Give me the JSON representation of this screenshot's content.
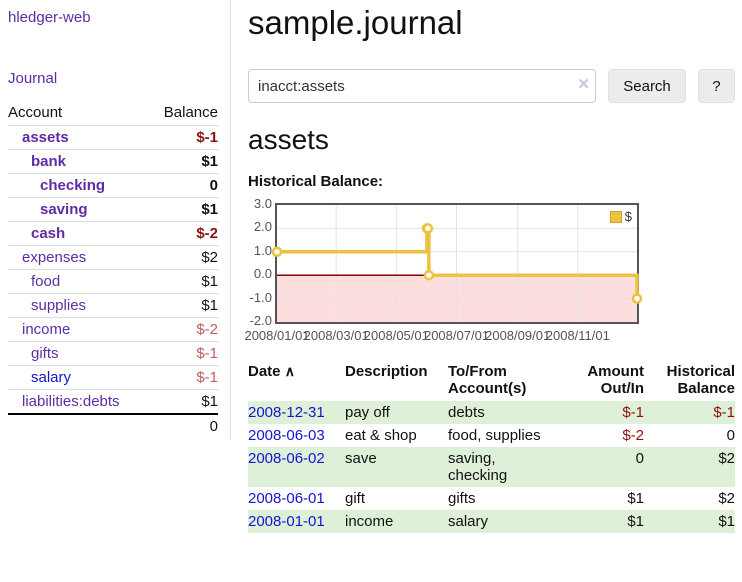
{
  "brand": "hledger-web",
  "nav": {
    "journal": "Journal"
  },
  "page": {
    "title": "sample.journal"
  },
  "sidebar": {
    "header": {
      "account": "Account",
      "balance": "Balance"
    },
    "rows": [
      {
        "name": "assets",
        "balance": "$-1"
      },
      {
        "name": "bank",
        "balance": "$1"
      },
      {
        "name": "checking",
        "balance": "0"
      },
      {
        "name": "saving",
        "balance": "$1"
      },
      {
        "name": "cash",
        "balance": "$-2"
      },
      {
        "name": "expenses",
        "balance": "$2"
      },
      {
        "name": "food",
        "balance": "$1"
      },
      {
        "name": "supplies",
        "balance": "$1"
      },
      {
        "name": "income",
        "balance": "$-2"
      },
      {
        "name": "gifts",
        "balance": "$-1"
      },
      {
        "name": "salary",
        "balance": "$-1"
      },
      {
        "name": "liabilities:debts",
        "balance": "$1"
      }
    ],
    "total": "0"
  },
  "search": {
    "value": "inacct:assets",
    "clear_icon": "×",
    "button_label": "Search",
    "help_label": "?"
  },
  "account_heading": "assets",
  "chart_heading": "Historical Balance:",
  "chart_data": {
    "type": "line",
    "title": "Historical Balance",
    "steps": true,
    "legend": [
      {
        "label": "$",
        "color": "#edc240"
      }
    ],
    "x_span_days": 365,
    "points": [
      {
        "date": "2008-01-01",
        "day": 0,
        "value": 1
      },
      {
        "date": "2008-06-01",
        "day": 152,
        "value": 2
      },
      {
        "date": "2008-06-02",
        "day": 153,
        "value": 2
      },
      {
        "date": "2008-06-03",
        "day": 154,
        "value": 0
      },
      {
        "date": "2008-12-31",
        "day": 365,
        "value": -1
      }
    ],
    "ylim": [
      -2,
      3
    ],
    "yticks": [
      {
        "label": "3.0",
        "value": 3
      },
      {
        "label": "2.0",
        "value": 2
      },
      {
        "label": "1.0",
        "value": 1
      },
      {
        "label": "0.0",
        "value": 0
      },
      {
        "label": "-1.0",
        "value": -1
      },
      {
        "label": "-2.0",
        "value": -2
      }
    ],
    "xticks": [
      {
        "label": "2008/01/01",
        "day": 0
      },
      {
        "label": "2008/03/01",
        "day": 60
      },
      {
        "label": "2008/05/01",
        "day": 121
      },
      {
        "label": "2008/07/01",
        "day": 182
      },
      {
        "label": "2008/09/01",
        "day": 244
      },
      {
        "label": "2008/11/01",
        "day": 305
      }
    ],
    "colors": {
      "series": "#edc240",
      "zero_line": "#8b0000",
      "negative_region": "#fcdede",
      "grid": "#e3e3e3"
    }
  },
  "register": {
    "headers": {
      "date": "Date",
      "sort_indicator": "∧",
      "description": "Description",
      "account": "To/From Account(s)",
      "amount": "Amount Out/In",
      "balance": "Historical Balance"
    },
    "rows": [
      {
        "date": "2008-12-31",
        "description": "pay off",
        "account": "debts",
        "amount": "$-1",
        "balance": "$-1"
      },
      {
        "date": "2008-06-03",
        "description": "eat & shop",
        "account": "food, supplies",
        "amount": "$-2",
        "balance": "0"
      },
      {
        "date": "2008-06-02",
        "description": "save",
        "account": "saving,\nchecking",
        "amount": "0",
        "balance": "$2"
      },
      {
        "date": "2008-06-01",
        "description": "gift",
        "account": "gifts",
        "amount": "$1",
        "balance": "$2"
      },
      {
        "date": "2008-01-01",
        "description": "income",
        "account": "salary",
        "amount": "$1",
        "balance": "$1"
      }
    ]
  }
}
